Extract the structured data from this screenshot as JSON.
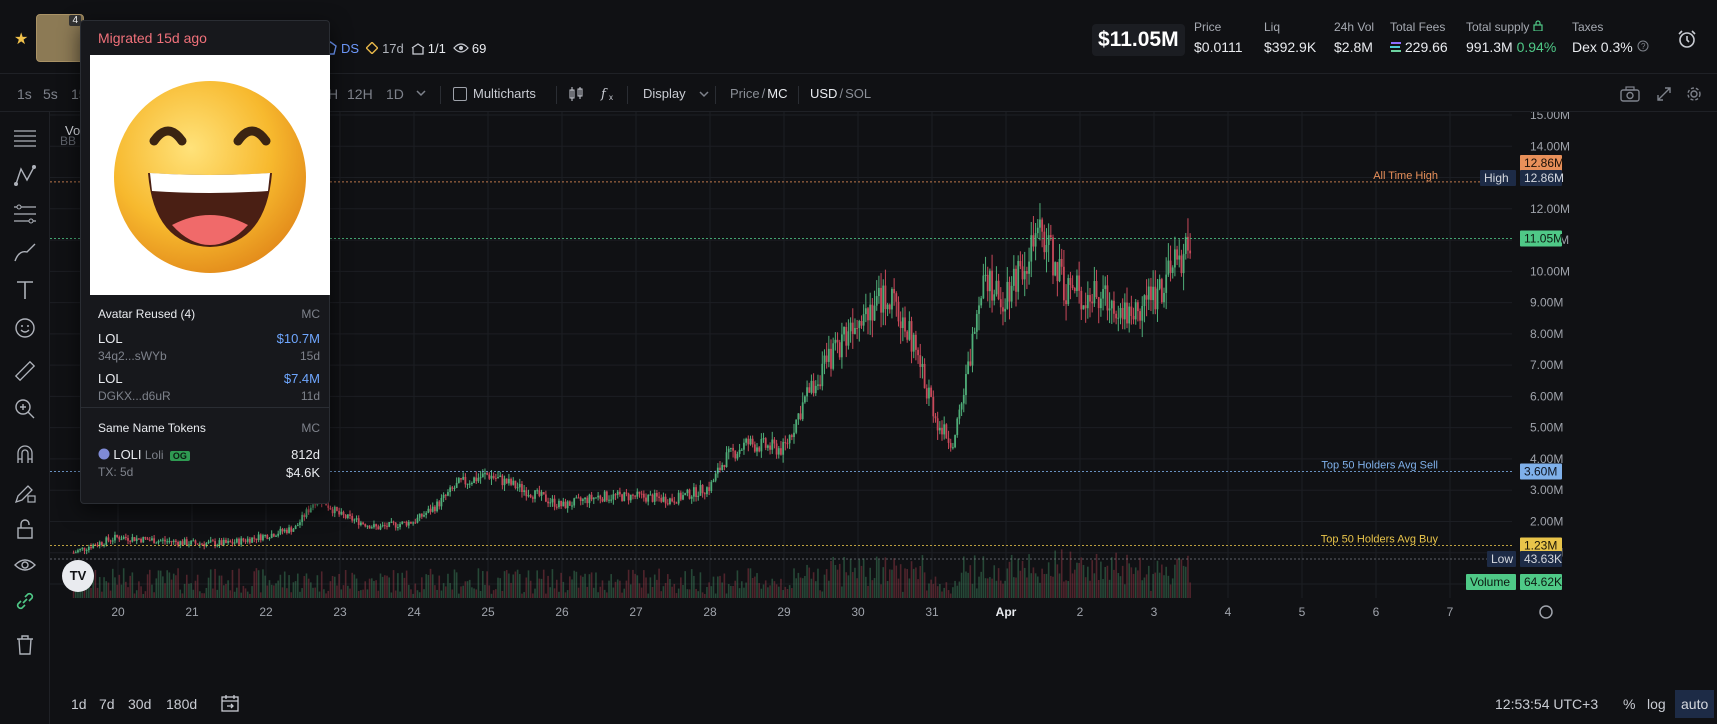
{
  "popup": {
    "title": "Migrated 15d ago",
    "avatar_section": "Avatar Reused (4)",
    "mc_label": "MC",
    "avatar_tokens": [
      {
        "name": "LOL",
        "address": "34q2...sWYb",
        "mc": "$10.7M",
        "age": "15d"
      },
      {
        "name": "LOL",
        "address": "DGKX...d6uR",
        "mc": "$7.4M",
        "age": "11d"
      }
    ],
    "same_name_section": "Same Name Tokens",
    "same_name": {
      "symbol": "LOLI",
      "name": "Loli",
      "badge": "OG",
      "age": "812d",
      "tx": "TX: 5d",
      "mc": "$4.6K"
    }
  },
  "header": {
    "avatar_badge": "4",
    "ds_label": "DS",
    "age": "17d",
    "holders_ratio": "1/1",
    "watchers": "69",
    "market_cap": "$11.05M",
    "stats": [
      {
        "label": "Price",
        "value": "$0.0111"
      },
      {
        "label": "Liq",
        "value": "$392.9K"
      },
      {
        "label": "24h Vol",
        "value": "$2.8M"
      },
      {
        "label": "Total Fees",
        "value": "229.66"
      },
      {
        "label": "Total supply",
        "value": "991.3M",
        "extra": "0.94%"
      },
      {
        "label": "Taxes",
        "value": "Dex",
        "extra": "0.3%"
      }
    ]
  },
  "toolbar": {
    "timeframes": [
      "1s",
      "5s",
      "15",
      "H",
      "12H",
      "1D"
    ],
    "multicharts": "Multicharts",
    "display": "Display",
    "price_label": "Price",
    "mc_label": "MC",
    "usd_label": "USD",
    "sol_label": "SOL",
    "slash": "/"
  },
  "legend": {
    "volume_prefix": "Volu",
    "bb_prefix": "BB"
  },
  "chart_data": {
    "type": "candlestick",
    "x_ticks": [
      "20",
      "21",
      "22",
      "23",
      "24",
      "25",
      "26",
      "27",
      "28",
      "29",
      "30",
      "31",
      "Apr",
      "2",
      "3",
      "4",
      "5",
      "6",
      "7"
    ],
    "y_ticks": [
      "15.00M",
      "14.00M",
      "12.00M",
      "11.00M",
      "10.00M",
      "9.00M",
      "8.00M",
      "7.00M",
      "6.00M",
      "5.00M",
      "4.00M",
      "3.00M",
      "2.00M",
      "1.00M"
    ],
    "ylim": [
      0,
      15000000
    ],
    "series_anchors": {
      "days": [
        19.4,
        19.6,
        20.0,
        20.5,
        21.0,
        21.5,
        22.0,
        22.4,
        22.7,
        23.0,
        23.5,
        24.0,
        24.3,
        24.6,
        25.0,
        25.5,
        26.0,
        26.5,
        27.0,
        27.5,
        28.0,
        28.2,
        28.5,
        29.0,
        29.3,
        29.7,
        30.0,
        30.4,
        30.7,
        30.9,
        31.1,
        31.3,
        31.5,
        31.7,
        31.9,
        32.2,
        32.5,
        32.8,
        33.0,
        33.5,
        33.7,
        34.0,
        34.2,
        34.5
      ],
      "mc_millions": [
        1.0,
        1.2,
        1.5,
        1.4,
        1.3,
        1.3,
        1.55,
        1.8,
        2.8,
        2.2,
        1.8,
        2.0,
        2.5,
        3.2,
        3.5,
        3.0,
        2.5,
        2.8,
        2.8,
        2.7,
        3.1,
        4.0,
        4.5,
        4.3,
        6.0,
        7.5,
        8.7,
        9.2,
        8.0,
        6.5,
        5.0,
        4.5,
        7.0,
        10.3,
        9.0,
        10.2,
        11.2,
        9.5,
        9.3,
        9.0,
        8.6,
        9.3,
        9.8,
        11.05
      ]
    },
    "price_lines": [
      {
        "label": "All Time High",
        "value": "12.86M",
        "color": "#e8905a"
      },
      {
        "label": "Top 50 Holders Avg Sell",
        "value": "3.60M",
        "color": "#7fb0ea"
      },
      {
        "label": "Top 50 Holders Avg Buy",
        "value": "1.23M",
        "color": "#e8c44a"
      }
    ],
    "badges": {
      "ath": "12.86M",
      "high_label": "High",
      "high": "12.86M",
      "current": "11.05M",
      "low_label": "Low",
      "low": "43.63K",
      "volume_label": "Volume",
      "volume": "64.62K"
    },
    "colors": {
      "up": "#4fae79",
      "down": "#c9495a",
      "grid": "#1c1e23",
      "axis_text": "#9fa3ab"
    }
  },
  "bottombar": {
    "ranges": [
      "1d",
      "7d",
      "30d",
      "180d"
    ],
    "clock": "12:53:54 UTC+3",
    "pct": "%",
    "log": "log",
    "auto": "auto"
  }
}
